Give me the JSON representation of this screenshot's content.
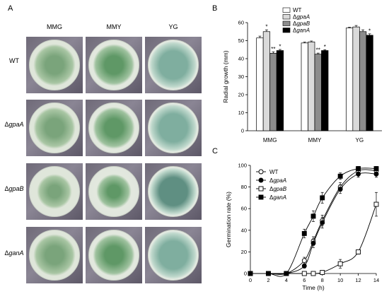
{
  "figure": {
    "panel_a": {
      "letter": "A",
      "columns": [
        "MMG",
        "MMY",
        "YG"
      ],
      "rows": [
        {
          "prefix": "",
          "name": "WT",
          "italic": false
        },
        {
          "prefix": "Δ",
          "name": "gpaA",
          "italic": true
        },
        {
          "prefix": "Δ",
          "name": "gpaB",
          "italic": true
        },
        {
          "prefix": "Δ",
          "name": "ganA",
          "italic": true
        }
      ],
      "colors": {
        "colony_green": "#6a9e6e",
        "agar": "#d8e2d2",
        "plate_bg": "#7a7582"
      }
    },
    "panel_b": {
      "letter": "B"
    },
    "panel_c": {
      "letter": "C"
    }
  },
  "chart_data": [
    {
      "panel": "B",
      "type": "bar",
      "ylabel": "Radial growth (mm)",
      "ylim": [
        0,
        60
      ],
      "yticks": [
        0,
        10,
        20,
        30,
        40,
        50,
        60
      ],
      "categories": [
        "MMG",
        "MMY",
        "YG"
      ],
      "legend_position": "top-right",
      "series": [
        {
          "name": "WT",
          "prefix": "",
          "label": "WT",
          "color": "#ffffff",
          "values": [
            51.5,
            48.7,
            57.0
          ],
          "errors": [
            1.0,
            0.5,
            0.4
          ],
          "marks": [
            "",
            "",
            ""
          ]
        },
        {
          "name": "ΔgpaA",
          "prefix": "Δ",
          "label": "gpaA",
          "color": "#dadada",
          "values": [
            55.0,
            49.3,
            57.6
          ],
          "errors": [
            1.0,
            0.5,
            0.8
          ],
          "marks": [
            "*",
            "",
            ""
          ]
        },
        {
          "name": "ΔgpaB",
          "prefix": "Δ",
          "label": "gpaB",
          "color": "#8c8c8c",
          "values": [
            43.0,
            42.5,
            55.0
          ],
          "errors": [
            0.8,
            0.6,
            1.0
          ],
          "marks": [
            "**",
            "**",
            ""
          ]
        },
        {
          "name": "ΔganA",
          "prefix": "Δ",
          "label": "ganA",
          "color": "#000000",
          "values": [
            44.5,
            44.5,
            53.0
          ],
          "errors": [
            0.6,
            0.5,
            0.8
          ],
          "marks": [
            "*",
            "*",
            "*"
          ]
        }
      ]
    },
    {
      "panel": "C",
      "type": "line",
      "xlabel": "Time (h)",
      "ylabel": "Germination rate (%)",
      "xlim": [
        0,
        14
      ],
      "ylim": [
        0,
        100
      ],
      "xticks": [
        0,
        2,
        4,
        6,
        8,
        10,
        12,
        14
      ],
      "yticks": [
        0,
        20,
        40,
        60,
        80,
        100
      ],
      "legend_position": "top-left",
      "x": [
        0,
        2,
        4,
        6,
        7,
        8,
        10,
        12,
        14
      ],
      "series": [
        {
          "name": "WT",
          "prefix": "",
          "label": "WT",
          "marker": "circle-open",
          "values": [
            0,
            0,
            0,
            12,
            30,
            49,
            80,
            95,
            95
          ],
          "errors": [
            0,
            0,
            0,
            3,
            4,
            5,
            4,
            2,
            2
          ]
        },
        {
          "name": "ΔgpaA",
          "prefix": "Δ",
          "label": "gpaA",
          "marker": "circle-filled",
          "values": [
            0,
            0,
            0,
            7,
            28,
            47,
            78,
            92,
            92
          ],
          "errors": [
            0,
            0,
            0,
            2,
            4,
            5,
            4,
            3,
            3
          ]
        },
        {
          "name": "ΔgpaB",
          "prefix": "Δ",
          "label": "gpaB",
          "marker": "square-open",
          "values": [
            0,
            0,
            0,
            0,
            0,
            1,
            9,
            20,
            64
          ],
          "errors": [
            0,
            0,
            0,
            0,
            0,
            1,
            4,
            2,
            11
          ]
        },
        {
          "name": "ΔganA",
          "prefix": "Δ",
          "label": "ganA",
          "marker": "square-filled",
          "values": [
            0,
            0,
            0,
            37,
            53,
            70,
            90,
            97,
            97
          ],
          "errors": [
            0,
            0,
            0,
            4,
            5,
            5,
            3,
            2,
            2
          ]
        }
      ]
    }
  ]
}
